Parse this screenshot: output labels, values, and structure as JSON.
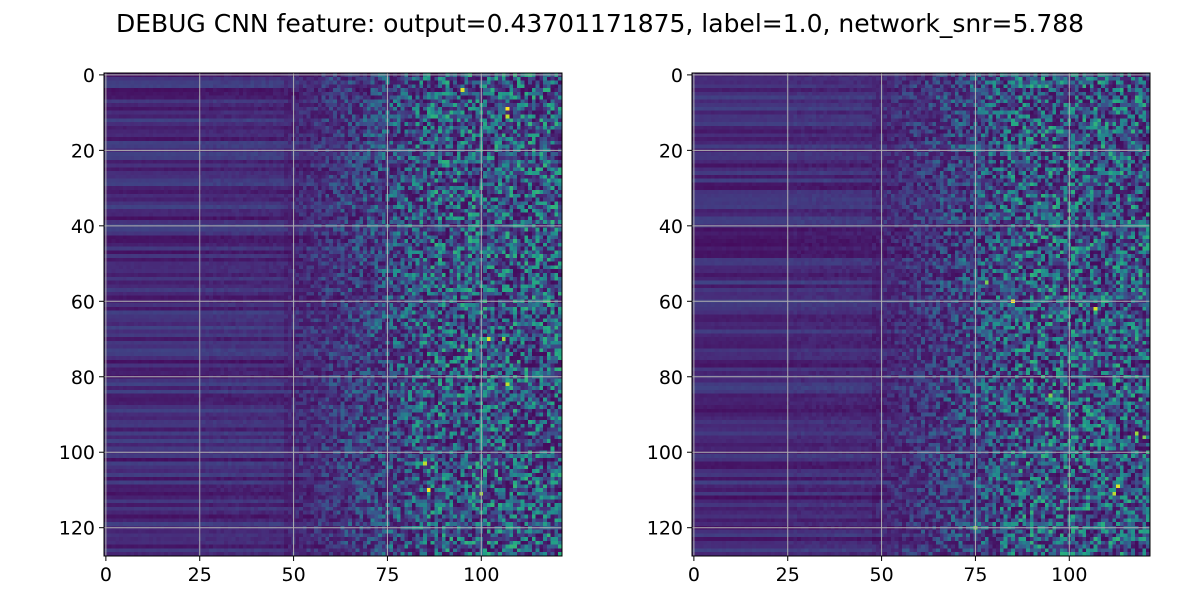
{
  "title": "DEBUG CNN feature: output=0.43701171875, label=1.0, network_snr=5.788",
  "chart_data": [
    {
      "type": "heatmap",
      "colormap": "viridis",
      "grid": true,
      "rows": 128,
      "cols": 122,
      "xlim": [
        -0.5,
        121.5
      ],
      "ylim": [
        127.5,
        -0.5
      ],
      "xticks": [
        0,
        25,
        50,
        75,
        100
      ],
      "yticks": [
        0,
        20,
        40,
        60,
        80,
        100,
        120
      ],
      "xtick_labels": [
        "0",
        "25",
        "50",
        "75",
        "100"
      ],
      "ytick_labels": [
        "0",
        "20",
        "40",
        "60",
        "80",
        "100",
        "120"
      ],
      "value_range": [
        0,
        1
      ],
      "hotspots": [
        {
          "x": 95,
          "y": 4,
          "v": 0.95
        },
        {
          "x": 107,
          "y": 9,
          "v": 1.0
        },
        {
          "x": 107,
          "y": 11,
          "v": 0.9
        },
        {
          "x": 102,
          "y": 70,
          "v": 0.95
        },
        {
          "x": 97,
          "y": 73,
          "v": 0.8
        },
        {
          "x": 106,
          "y": 70,
          "v": 0.85
        },
        {
          "x": 107,
          "y": 82,
          "v": 0.9
        },
        {
          "x": 85,
          "y": 103,
          "v": 0.9
        },
        {
          "x": 86,
          "y": 110,
          "v": 1.0
        },
        {
          "x": 100,
          "y": 111,
          "v": 0.85
        }
      ],
      "seed": 1234
    },
    {
      "type": "heatmap",
      "colormap": "viridis",
      "grid": true,
      "rows": 128,
      "cols": 122,
      "xlim": [
        -0.5,
        121.5
      ],
      "ylim": [
        127.5,
        -0.5
      ],
      "xticks": [
        0,
        25,
        50,
        75,
        100
      ],
      "yticks": [
        0,
        20,
        40,
        60,
        80,
        100,
        120
      ],
      "xtick_labels": [
        "0",
        "25",
        "50",
        "75",
        "100"
      ],
      "ytick_labels": [
        "0",
        "20",
        "40",
        "60",
        "80",
        "100",
        "120"
      ],
      "value_range": [
        0,
        1
      ],
      "hotspots": [
        {
          "x": 85,
          "y": 60,
          "v": 1.0
        },
        {
          "x": 107,
          "y": 62,
          "v": 0.95
        },
        {
          "x": 78,
          "y": 55,
          "v": 0.8
        },
        {
          "x": 113,
          "y": 109,
          "v": 0.95
        },
        {
          "x": 112,
          "y": 111,
          "v": 0.9
        },
        {
          "x": 118,
          "y": 95,
          "v": 0.85
        },
        {
          "x": 120,
          "y": 96,
          "v": 0.8
        },
        {
          "x": 95,
          "y": 85,
          "v": 0.8
        },
        {
          "x": 75,
          "y": 120,
          "v": 0.8
        }
      ],
      "seed": 98765
    }
  ]
}
